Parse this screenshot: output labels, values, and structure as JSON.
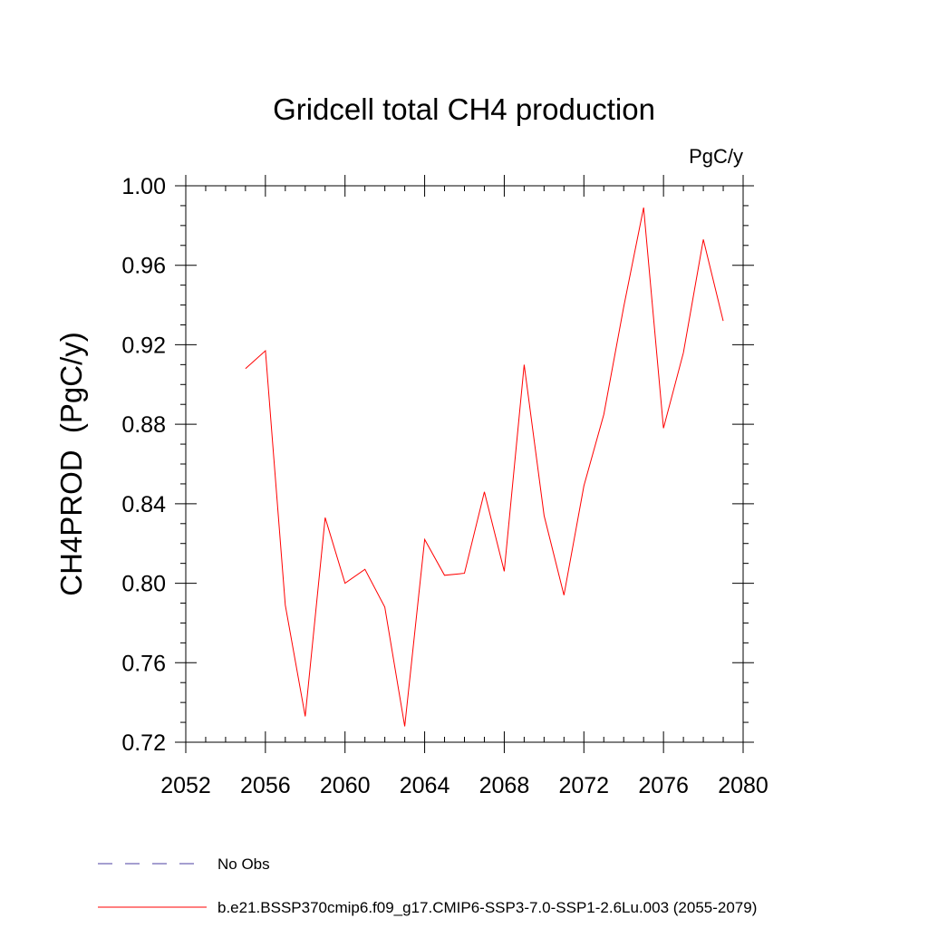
{
  "chart_data": {
    "type": "line",
    "title": "Gridcell total CH4 production",
    "units_label": "PgC/y",
    "ylabel": "CH4PROD  (PgC/y)",
    "xlabel": "",
    "xlim": [
      2052,
      2080
    ],
    "ylim": [
      0.72,
      1.0
    ],
    "x_ticks": [
      2052,
      2056,
      2060,
      2064,
      2068,
      2072,
      2076,
      2080
    ],
    "x_tick_labels": [
      "2052",
      "2056",
      "2060",
      "2064",
      "2068",
      "2072",
      "2076",
      "2080"
    ],
    "x_minor_step": 1,
    "y_ticks": [
      0.72,
      0.76,
      0.8,
      0.84,
      0.88,
      0.92,
      0.96,
      1.0
    ],
    "y_tick_labels": [
      "0.72",
      "0.76",
      "0.80",
      "0.84",
      "0.88",
      "0.92",
      "0.96",
      "1.00"
    ],
    "y_minor_step": 0.01,
    "grid": false,
    "legend_position": "bottom-left",
    "series": [
      {
        "name": "b.e21.BSSP370cmip6.f09_g17.CMIP6-SSP3-7.0-SSP1-2.6Lu.003 (2055-2079)",
        "color": "#ff0000",
        "line_style": "solid",
        "x": [
          2055,
          2056,
          2057,
          2058,
          2059,
          2060,
          2061,
          2062,
          2063,
          2064,
          2065,
          2066,
          2067,
          2068,
          2069,
          2070,
          2071,
          2072,
          2073,
          2074,
          2075,
          2076,
          2077,
          2078,
          2079
        ],
        "values": [
          0.908,
          0.917,
          0.789,
          0.733,
          0.833,
          0.8,
          0.807,
          0.788,
          0.728,
          0.822,
          0.804,
          0.805,
          0.846,
          0.806,
          0.91,
          0.834,
          0.794,
          0.849,
          0.885,
          0.939,
          0.989,
          0.878,
          0.916,
          0.973,
          0.932
        ]
      }
    ],
    "legend": [
      {
        "label": "No Obs",
        "color": "#4b3fa0",
        "line_style": "dashed"
      },
      {
        "label": "b.e21.BSSP370cmip6.f09_g17.CMIP6-SSP3-7.0-SSP1-2.6Lu.003 (2055-2079)",
        "color": "#ff0000",
        "line_style": "solid"
      }
    ]
  }
}
